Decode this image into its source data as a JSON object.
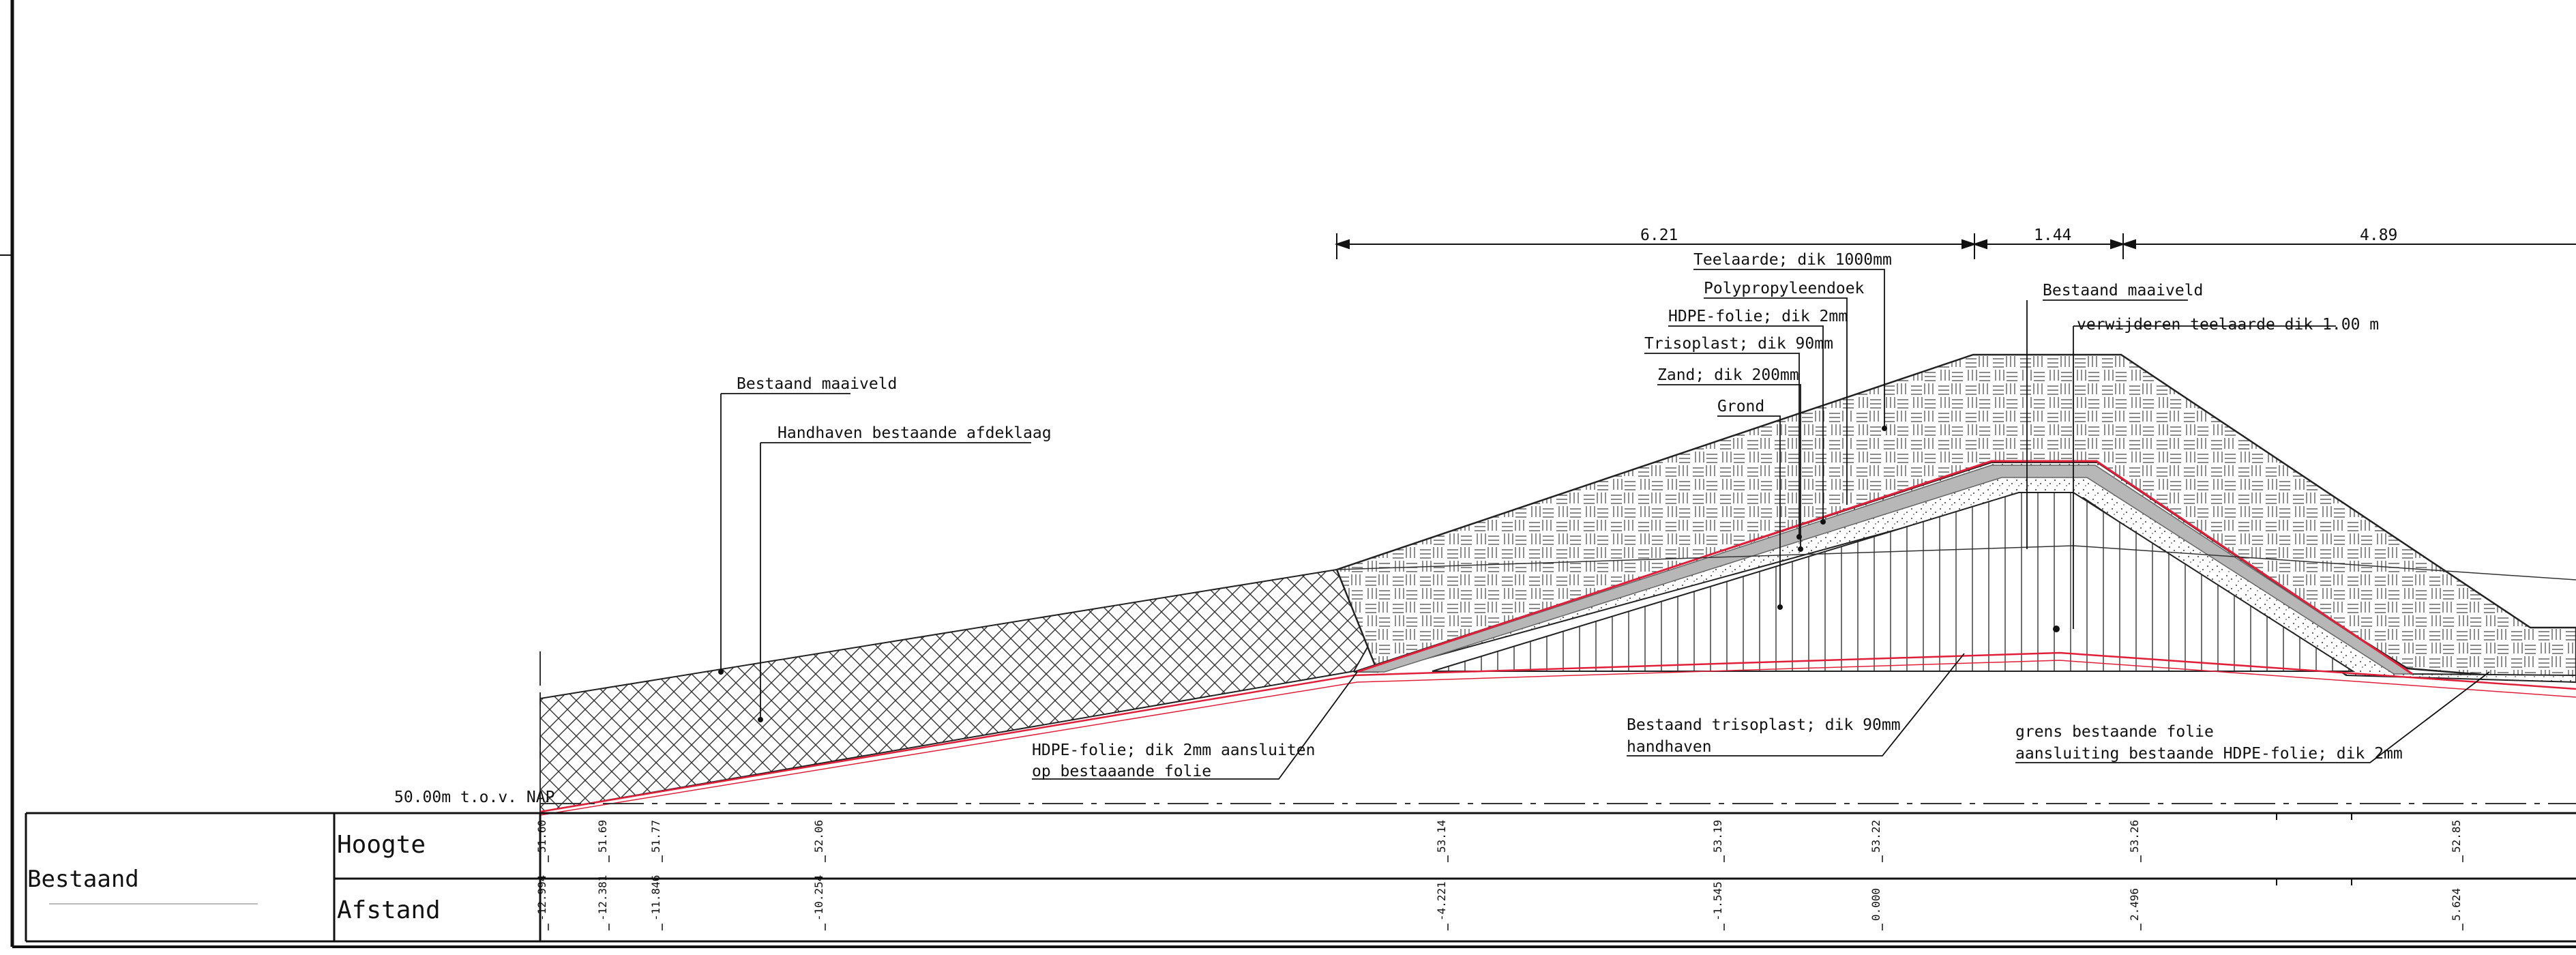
{
  "dimensions": {
    "d1": "6.21",
    "d2": "1.44",
    "d3": "4.89"
  },
  "labels": {
    "teelaarde": "Teelaarde; dik 1000mm",
    "polypropyleen": "Polypropyleendoek",
    "hdpe": "HDPE-folie; dik 2mm",
    "trisoplast": "Trisoplast; dik 90mm",
    "zand": "Zand; dik 200mm",
    "grond": "Grond",
    "maaiveld_left": "Bestaand maaiveld",
    "afdeklaag": "Handhaven bestaande afdeklaag",
    "maaiveld_right": "Bestaand maaiveld",
    "verwijderen": "verwijderen teelaarde dik 1.00 m",
    "hdpe_aansluiten_1": "HDPE-folie; dik 2mm aansluiten",
    "hdpe_aansluiten_2": "op bestaaande folie",
    "trisoplast_bestaand_1": "Bestaand trisoplast; dik 90mm",
    "trisoplast_bestaand_2": "handhaven",
    "grens_1": "grens bestaande folie",
    "grens_2": "aansluiting bestaande HDPE-folie; dik 2mm",
    "reference": "50.00m t.o.v. NAP"
  },
  "table": {
    "section": "Bestaand",
    "row1": "Hoogte",
    "row2": "Afstand",
    "hoogte": [
      "51.60",
      "51.69",
      "51.77",
      "52.06",
      "53.14",
      "53.19",
      "53.22",
      "53.26",
      "52.85"
    ],
    "afstand": [
      "-12.994",
      "-12.381",
      "-11.846",
      "-10.254",
      "-4.221",
      "-1.545",
      "0.000",
      "2.496",
      "5.624"
    ]
  }
}
